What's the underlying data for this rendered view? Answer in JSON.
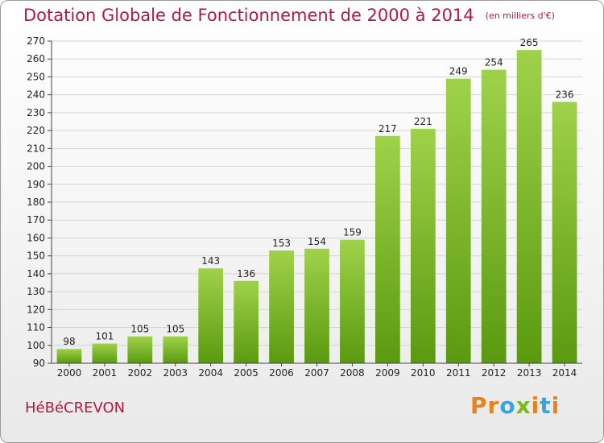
{
  "header": {
    "title": "Dotation Globale de Fonctionnement de 2000 à 2014",
    "subtitle": "(en milliers d'€)"
  },
  "footer": {
    "town": "HéBéCREVON",
    "brand": "Proxiti",
    "brand_letters": [
      "P",
      "r",
      "o",
      "x",
      "i",
      "t",
      "i"
    ],
    "brand_colors": [
      "#e8821e",
      "#e8821e",
      "#3aa5dc",
      "#7db925",
      "#e8821e",
      "#3aa5dc",
      "#e8821e"
    ]
  },
  "colors": {
    "accent": "#b5183f",
    "bar_top": "#9fd24a",
    "bar_bottom": "#5a9a10",
    "grid": "#d4d4d4",
    "axis": "#444444"
  },
  "chart_data": {
    "type": "bar",
    "title": "Dotation Globale de Fonctionnement de 2000 à 2014",
    "subtitle": "(en milliers d'€)",
    "xlabel": "",
    "ylabel": "",
    "categories": [
      "2000",
      "2001",
      "2002",
      "2003",
      "2004",
      "2005",
      "2006",
      "2007",
      "2008",
      "2009",
      "2010",
      "2011",
      "2012",
      "2013",
      "2014"
    ],
    "values": [
      98,
      101,
      105,
      105,
      143,
      136,
      153,
      154,
      159,
      217,
      221,
      249,
      254,
      265,
      236
    ],
    "ylim": [
      90,
      270
    ],
    "yticks": [
      90,
      100,
      110,
      120,
      130,
      140,
      150,
      160,
      170,
      180,
      190,
      200,
      210,
      220,
      230,
      240,
      250,
      260,
      270
    ],
    "grid": true,
    "data_labels": true
  }
}
